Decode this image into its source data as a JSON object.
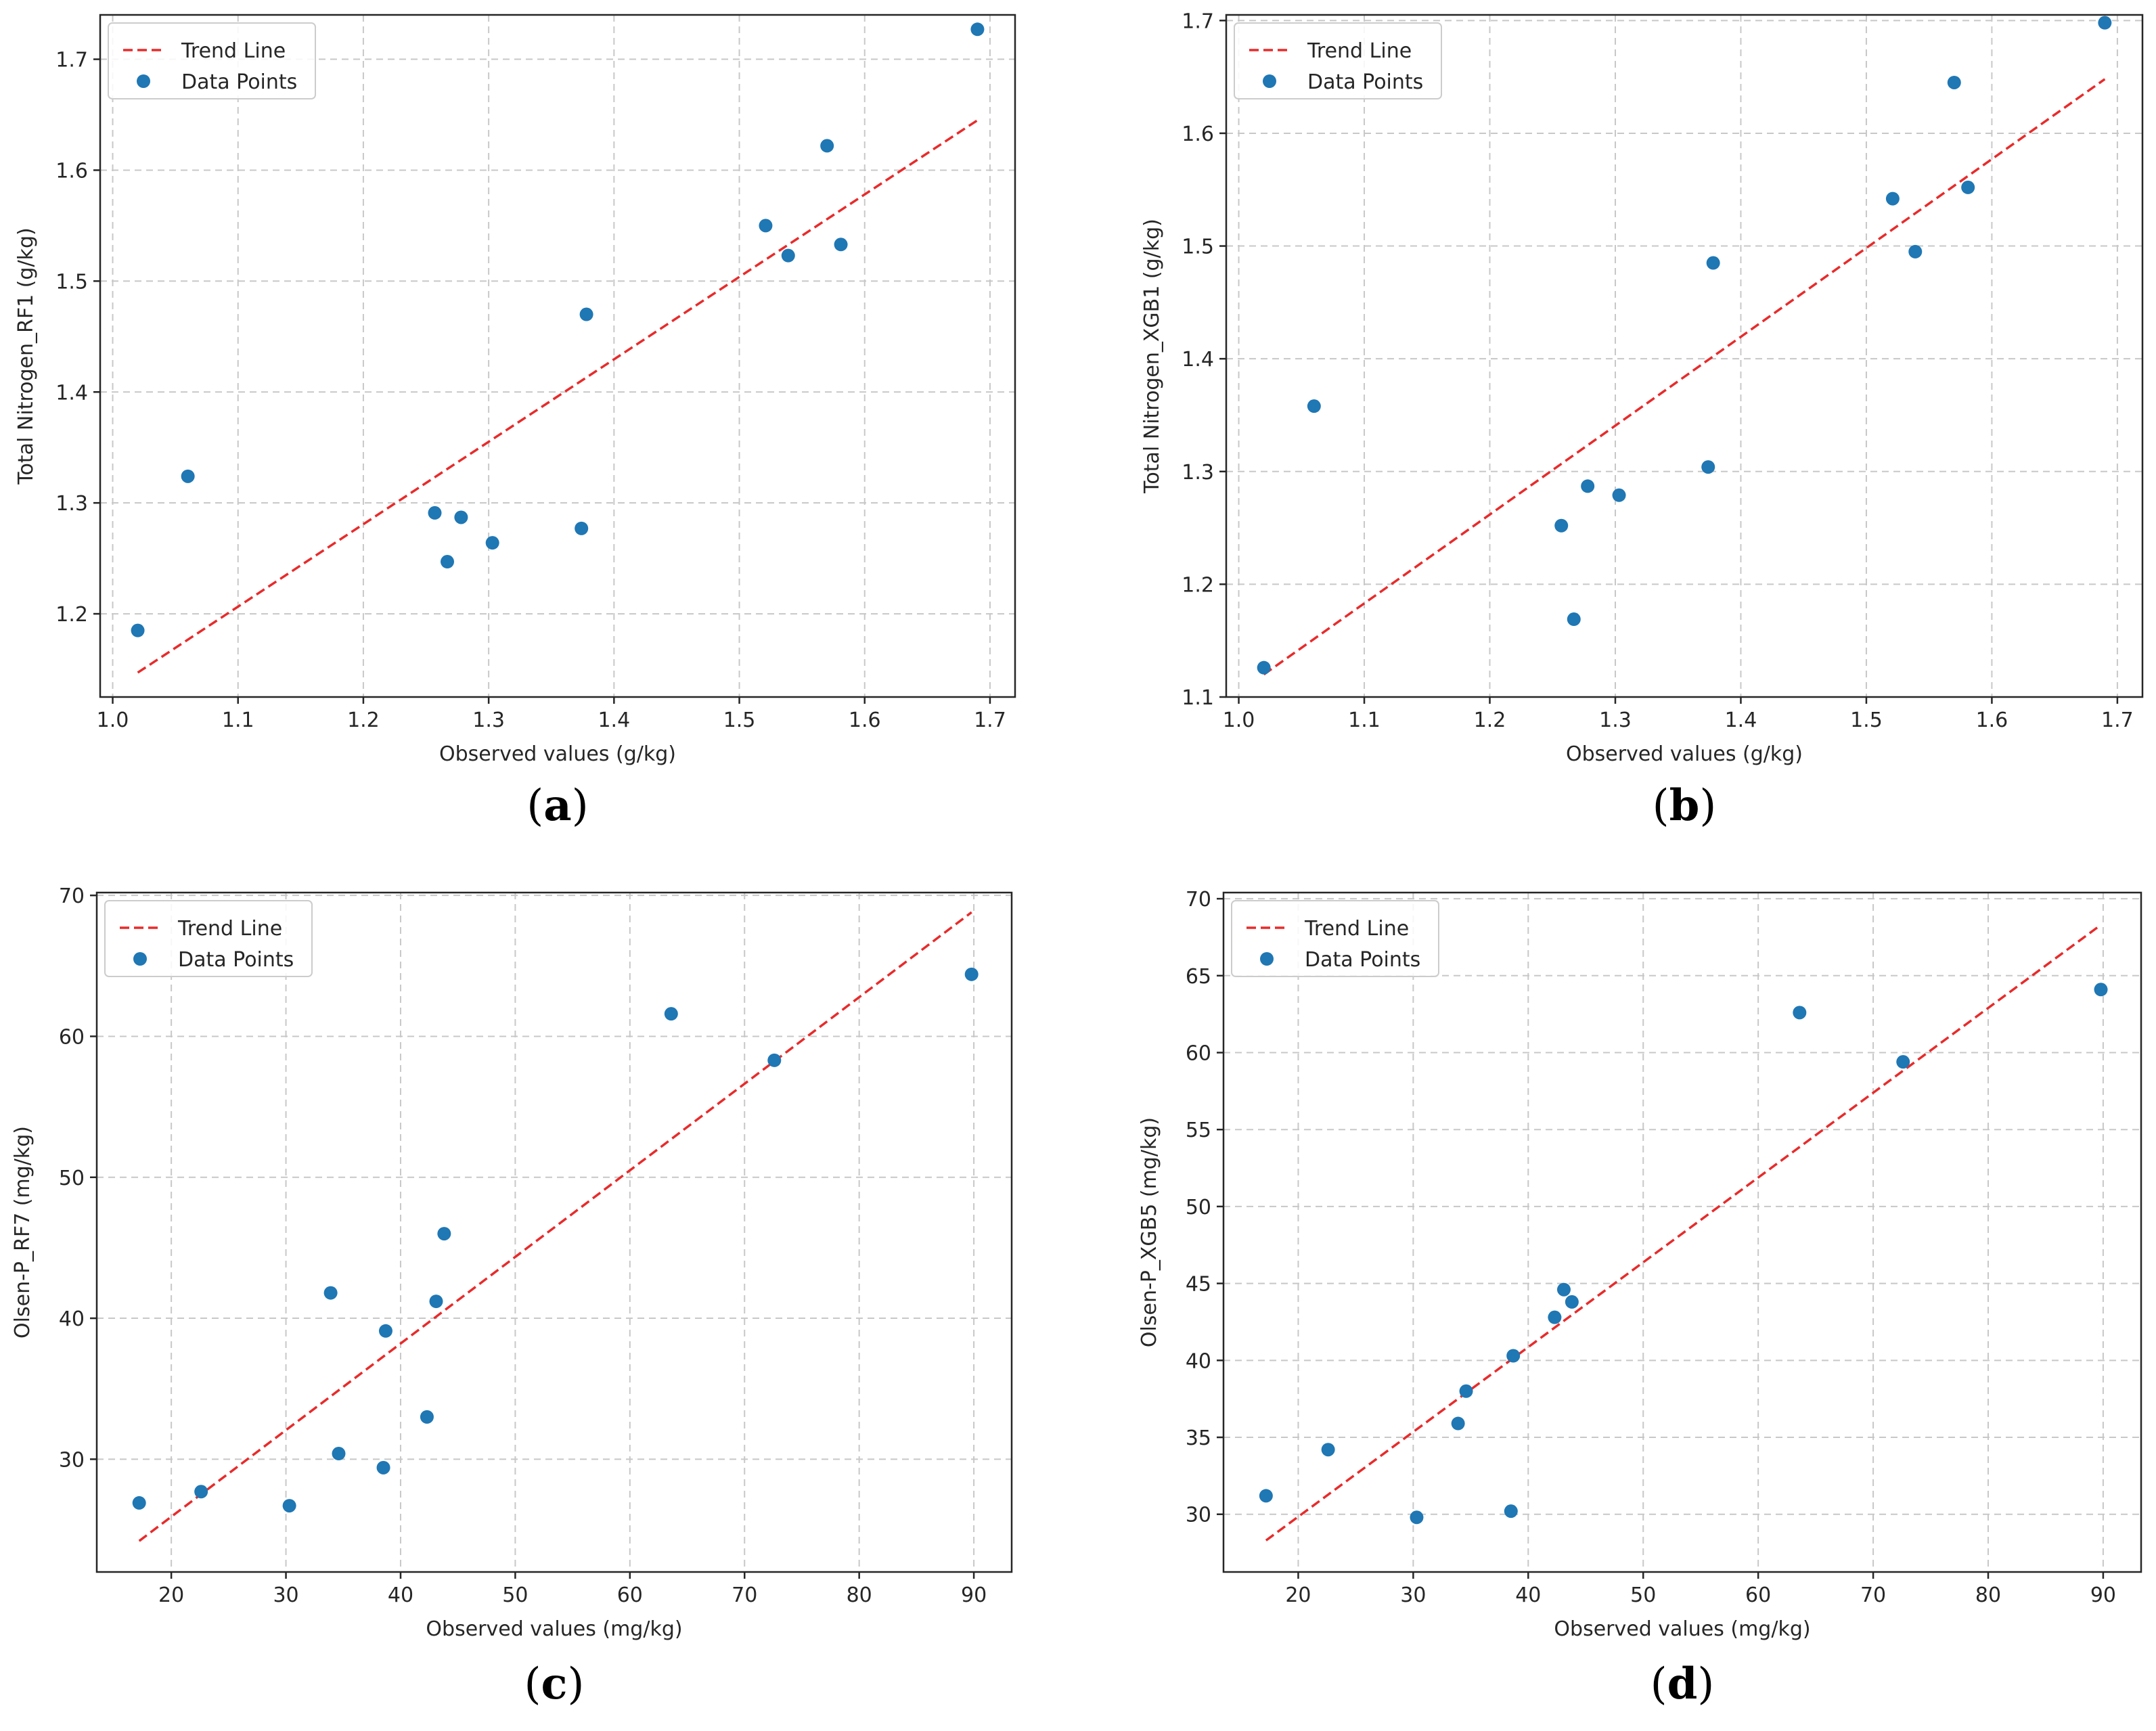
{
  "colors": {
    "trend": "#e82b2b",
    "points": "#1f77b4",
    "grid": "#c8c8c8",
    "axes": "#262626"
  },
  "chart_data": [
    {
      "type": "scatter",
      "panel_label": "(a)",
      "panel_letter": "a",
      "xlabel": "Observed values (g/kg)",
      "ylabel": "Total Nitrogen_RF1 (g/kg)",
      "xlim": [
        0.99,
        1.72
      ],
      "ylim": [
        1.125,
        1.74
      ],
      "xticks": [
        1.0,
        1.1,
        1.2,
        1.3,
        1.4,
        1.5,
        1.6,
        1.7
      ],
      "yticks": [
        1.2,
        1.3,
        1.4,
        1.5,
        1.6,
        1.7
      ],
      "tick_decimals": 1,
      "legend": {
        "trend": "Trend Line",
        "points": "Data Points"
      },
      "trend_line": {
        "x": [
          1.02,
          1.69
        ],
        "y": [
          1.147,
          1.645
        ]
      },
      "points": [
        {
          "x": 1.02,
          "y": 1.185
        },
        {
          "x": 1.06,
          "y": 1.324
        },
        {
          "x": 1.257,
          "y": 1.291
        },
        {
          "x": 1.267,
          "y": 1.247
        },
        {
          "x": 1.278,
          "y": 1.287
        },
        {
          "x": 1.303,
          "y": 1.264
        },
        {
          "x": 1.374,
          "y": 1.277
        },
        {
          "x": 1.378,
          "y": 1.47
        },
        {
          "x": 1.521,
          "y": 1.55
        },
        {
          "x": 1.539,
          "y": 1.523
        },
        {
          "x": 1.57,
          "y": 1.622
        },
        {
          "x": 1.581,
          "y": 1.533
        },
        {
          "x": 1.69,
          "y": 1.727
        }
      ]
    },
    {
      "type": "scatter",
      "panel_label": "(b)",
      "panel_letter": "b",
      "xlabel": "Observed values (g/kg)",
      "ylabel": "Total Nitrogen_XGB1 (g/kg)",
      "xlim": [
        0.99,
        1.72
      ],
      "ylim": [
        1.1,
        1.705
      ],
      "xticks": [
        1.0,
        1.1,
        1.2,
        1.3,
        1.4,
        1.5,
        1.6,
        1.7
      ],
      "yticks": [
        1.1,
        1.2,
        1.3,
        1.4,
        1.5,
        1.6,
        1.7
      ],
      "tick_decimals": 1,
      "legend": {
        "trend": "Trend Line",
        "points": "Data Points"
      },
      "trend_line": {
        "x": [
          1.02,
          1.69
        ],
        "y": [
          1.12,
          1.648
        ]
      },
      "points": [
        {
          "x": 1.02,
          "y": 1.126
        },
        {
          "x": 1.06,
          "y": 1.358
        },
        {
          "x": 1.257,
          "y": 1.252
        },
        {
          "x": 1.267,
          "y": 1.169
        },
        {
          "x": 1.278,
          "y": 1.287
        },
        {
          "x": 1.303,
          "y": 1.279
        },
        {
          "x": 1.374,
          "y": 1.304
        },
        {
          "x": 1.378,
          "y": 1.485
        },
        {
          "x": 1.521,
          "y": 1.542
        },
        {
          "x": 1.539,
          "y": 1.495
        },
        {
          "x": 1.57,
          "y": 1.645
        },
        {
          "x": 1.581,
          "y": 1.552
        },
        {
          "x": 1.69,
          "y": 1.698
        }
      ]
    },
    {
      "type": "scatter",
      "panel_label": "(c)",
      "panel_letter": "c",
      "xlabel": "Observed values (mg/kg)",
      "ylabel": "Olsen-P_RF7 (mg/kg)",
      "xlim": [
        13.5,
        93.3
      ],
      "ylim": [
        22.0,
        70.2
      ],
      "xticks": [
        20,
        30,
        40,
        50,
        60,
        70,
        80,
        90
      ],
      "yticks": [
        30,
        40,
        50,
        60,
        70
      ],
      "tick_decimals": 0,
      "legend": {
        "trend": "Trend Line",
        "points": "Data Points"
      },
      "trend_line": {
        "x": [
          17.2,
          89.8
        ],
        "y": [
          24.2,
          68.8
        ]
      },
      "points": [
        {
          "x": 17.2,
          "y": 26.9
        },
        {
          "x": 22.6,
          "y": 27.7
        },
        {
          "x": 30.3,
          "y": 26.7
        },
        {
          "x": 33.9,
          "y": 41.8
        },
        {
          "x": 34.6,
          "y": 30.4
        },
        {
          "x": 38.5,
          "y": 29.4
        },
        {
          "x": 38.7,
          "y": 39.1
        },
        {
          "x": 42.3,
          "y": 33.0
        },
        {
          "x": 43.1,
          "y": 41.2
        },
        {
          "x": 43.8,
          "y": 46.0
        },
        {
          "x": 63.6,
          "y": 61.6
        },
        {
          "x": 72.6,
          "y": 58.3
        },
        {
          "x": 89.8,
          "y": 64.4
        }
      ]
    },
    {
      "type": "scatter",
      "panel_label": "(d)",
      "panel_letter": "d",
      "xlabel": "Observed values (mg/kg)",
      "ylabel": "Olsen-P_XGB5 (mg/kg)",
      "xlim": [
        13.5,
        93.3
      ],
      "ylim": [
        26.25,
        70.4
      ],
      "xticks": [
        20,
        30,
        40,
        50,
        60,
        70,
        80,
        90
      ],
      "yticks": [
        30,
        35,
        40,
        45,
        50,
        55,
        60,
        65,
        70
      ],
      "tick_decimals": 0,
      "legend": {
        "trend": "Trend Line",
        "points": "Data Points"
      },
      "trend_line": {
        "x": [
          17.2,
          89.8
        ],
        "y": [
          28.3,
          68.3
        ]
      },
      "points": [
        {
          "x": 17.2,
          "y": 31.2
        },
        {
          "x": 22.6,
          "y": 34.2
        },
        {
          "x": 30.3,
          "y": 29.8
        },
        {
          "x": 33.9,
          "y": 35.9
        },
        {
          "x": 34.6,
          "y": 38.0
        },
        {
          "x": 38.5,
          "y": 30.2
        },
        {
          "x": 38.7,
          "y": 40.3
        },
        {
          "x": 42.3,
          "y": 42.8
        },
        {
          "x": 43.1,
          "y": 44.6
        },
        {
          "x": 43.8,
          "y": 43.8
        },
        {
          "x": 63.6,
          "y": 62.6
        },
        {
          "x": 72.6,
          "y": 59.4
        },
        {
          "x": 89.8,
          "y": 64.1
        }
      ]
    }
  ]
}
